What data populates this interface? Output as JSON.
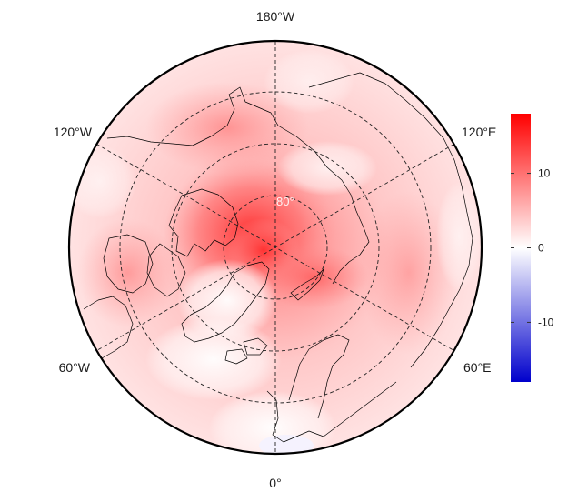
{
  "map": {
    "projection": "north-polar-stereographic",
    "colormap": {
      "low": "#0000cc",
      "mid": "#ffffff",
      "high": "#ff0000"
    },
    "longitude_labels": [
      "180°W",
      "120°E",
      "60°E",
      "0°",
      "60°W",
      "120°W"
    ],
    "latitude_label": "80°"
  },
  "colorbar": {
    "min": -18,
    "max": 18,
    "ticks": [
      {
        "value": 10,
        "label": "10"
      },
      {
        "value": 0,
        "label": "0"
      },
      {
        "value": -10,
        "label": "-10"
      }
    ]
  }
}
